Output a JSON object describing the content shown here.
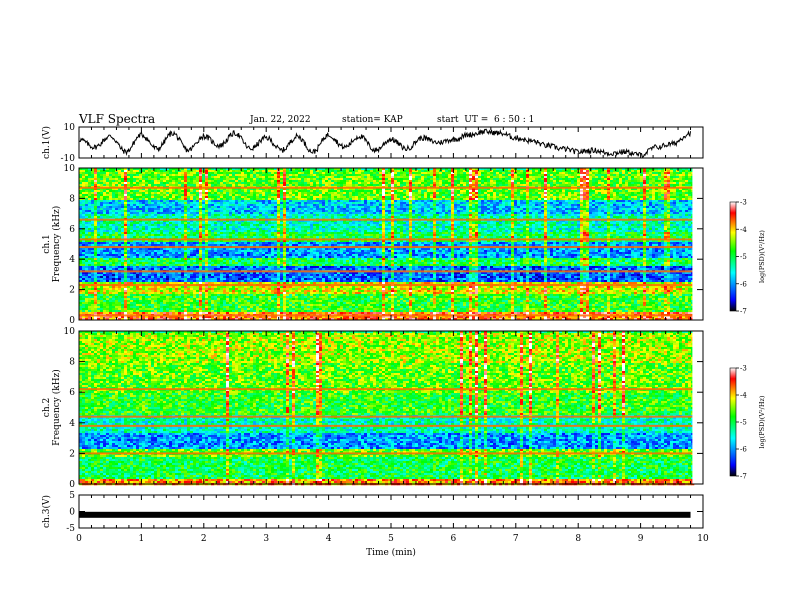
{
  "header": {
    "title": "VLF Spectra",
    "date": "Jan. 22, 2022",
    "station": "station= KAP",
    "start_ut": "start  UT =  6 : 50 : 1"
  },
  "chart_data": [
    {
      "type": "line",
      "panel": "ch1-waveform",
      "ylabel": "ch.1(V)",
      "ylim": [
        -10,
        10
      ],
      "yticks": [
        "10",
        "-10"
      ],
      "xlim": [
        0,
        10
      ],
      "series": [
        {
          "x": [
            0,
            0.25,
            0.5,
            0.75,
            1.0,
            1.25,
            1.5,
            1.75,
            2.0,
            2.25,
            2.5,
            2.75,
            3.0,
            3.25,
            3.5,
            3.75,
            4.0,
            4.25,
            4.5,
            4.75,
            5.0,
            5.25,
            5.5,
            5.75,
            6.0,
            6.25,
            6.5,
            6.75,
            7.0,
            7.25,
            7.5,
            7.75,
            8.0,
            8.25,
            8.5,
            8.75,
            9.0,
            9.25,
            9.5,
            9.8
          ],
          "values": [
            2,
            -3,
            4,
            -6,
            5,
            -4,
            6,
            -5,
            4,
            -2,
            6,
            -4,
            3,
            -5,
            4,
            -6,
            5,
            -3,
            4,
            -5,
            2,
            -4,
            3,
            0,
            2,
            5,
            7,
            6,
            3,
            1,
            -2,
            -4,
            -6,
            -5,
            -7,
            -6,
            -8,
            -3,
            -1,
            6
          ]
        }
      ]
    },
    {
      "type": "heatmap",
      "panel": "ch1-spectrogram",
      "ylabel": "ch.1\nFrequency (kHz)",
      "ylim": [
        0,
        10
      ],
      "yticks": [
        "0",
        "2",
        "4",
        "6",
        "8",
        "10"
      ],
      "xlim": [
        0,
        10
      ],
      "bands": [
        {
          "from": 0,
          "to": 0.6,
          "level": -3.6
        },
        {
          "from": 0.6,
          "to": 1.8,
          "level": -4.8
        },
        {
          "from": 1.8,
          "to": 2.6,
          "level": -4.2
        },
        {
          "from": 2.6,
          "to": 3.6,
          "level": -6.2
        },
        {
          "from": 3.6,
          "to": 4.2,
          "level": -5.0
        },
        {
          "from": 4.2,
          "to": 5.2,
          "level": -6.0
        },
        {
          "from": 5.2,
          "to": 5.8,
          "level": -5.0
        },
        {
          "from": 5.8,
          "to": 7.0,
          "level": -5.4
        },
        {
          "from": 7.0,
          "to": 8.0,
          "level": -5.8
        },
        {
          "from": 8.0,
          "to": 10,
          "level": -4.6
        }
      ],
      "lines_khz": [
        0.3,
        2.3,
        3.2,
        4.8,
        5.3,
        6.6,
        8.7
      ],
      "colorbar": {
        "min": -7,
        "max": -3,
        "ticks": [
          "-3",
          "-4",
          "-5",
          "-6",
          "-7"
        ],
        "label": "log(PSD)(V²/Hz)"
      }
    },
    {
      "type": "heatmap",
      "panel": "ch2-spectrogram",
      "ylabel": "ch.2\nFrequency (kHz)",
      "ylim": [
        0,
        10
      ],
      "yticks": [
        "0",
        "2",
        "4",
        "6",
        "8",
        "10"
      ],
      "xlim": [
        0,
        10
      ],
      "bands": [
        {
          "from": 0,
          "to": 0.4,
          "level": -3.8
        },
        {
          "from": 0.4,
          "to": 1.8,
          "level": -5.0
        },
        {
          "from": 1.8,
          "to": 2.4,
          "level": -4.6
        },
        {
          "from": 2.4,
          "to": 3.4,
          "level": -6.0
        },
        {
          "from": 3.4,
          "to": 4.6,
          "level": -5.4
        },
        {
          "from": 4.6,
          "to": 6.0,
          "level": -4.8
        },
        {
          "from": 6.0,
          "to": 8.0,
          "level": -4.6
        },
        {
          "from": 8.0,
          "to": 10,
          "level": -4.4
        }
      ],
      "lines_khz": [
        2.0,
        3.8,
        4.4,
        6.2
      ],
      "colorbar": {
        "min": -7,
        "max": -3,
        "ticks": [
          "-3",
          "-4",
          "-5",
          "-6",
          "-7"
        ],
        "label": "log(PSD)(V²/Hz)"
      }
    },
    {
      "type": "line",
      "panel": "ch3-waveform",
      "ylabel": "ch.3(V)",
      "ylim": [
        -5,
        5
      ],
      "yticks": [
        "5",
        "0",
        "-5"
      ],
      "xlim": [
        0,
        10
      ],
      "xlabel": "Time (min)",
      "xticks": [
        "0",
        "1",
        "2",
        "3",
        "4",
        "5",
        "6",
        "7",
        "8",
        "9",
        "10"
      ],
      "series": [
        {
          "x": [
            0,
            9.8
          ],
          "values": [
            -1,
            -1
          ]
        }
      ]
    }
  ],
  "colors": {
    "ink": "#000000",
    "colormap": [
      "#000000",
      "#0000ff",
      "#00ffff",
      "#00ff00",
      "#ffff00",
      "#ff0000",
      "#ffffff"
    ]
  }
}
